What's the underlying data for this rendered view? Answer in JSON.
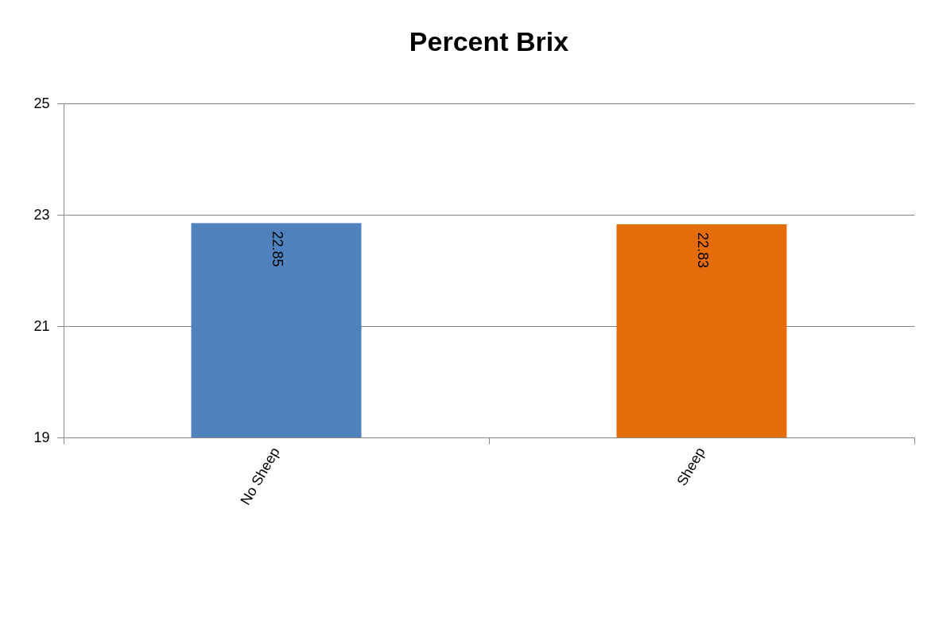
{
  "chart_data": {
    "type": "bar",
    "title": "Percent  Brix",
    "categories": [
      "No Sheep",
      "Sheep"
    ],
    "values": [
      22.85,
      22.83
    ],
    "colors": [
      "#4f81bd",
      "#e46c0a"
    ],
    "ylim": [
      19,
      25
    ],
    "yticks": [
      19,
      21,
      23,
      25
    ],
    "grid": "y",
    "data_labels": true
  }
}
